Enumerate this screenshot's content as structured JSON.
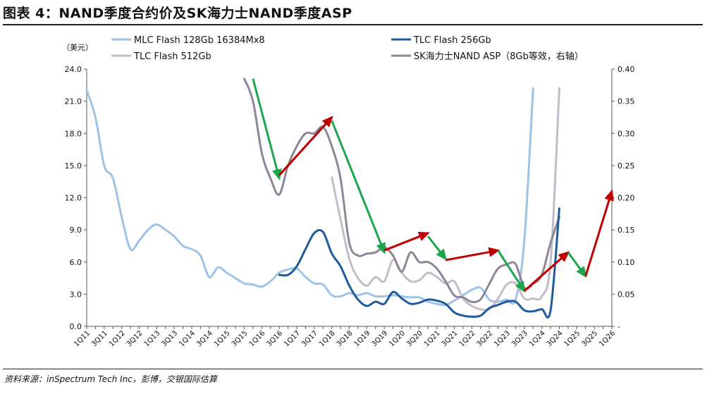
{
  "figure_title": "图表 4：NAND季度合约价及SK海力士NAND季度ASP",
  "source_note": "资料来源：inSpectrum Tech Inc，彭博，交银国际估算",
  "chart_data": {
    "type": "line",
    "title": "图表 4：NAND季度合约价及SK海力士NAND季度ASP",
    "y_unit_label": "（美元）",
    "ylim": [
      0,
      24
    ],
    "y_ticks": [
      "0.0",
      "3.0",
      "6.0",
      "9.0",
      "12.0",
      "15.0",
      "18.0",
      "21.0",
      "24.0"
    ],
    "y2lim": [
      0,
      0.4
    ],
    "y2_ticks": [
      "-",
      "0.05",
      "0.10",
      "0.15",
      "0.20",
      "0.25",
      "0.30",
      "0.35",
      "0.40"
    ],
    "grid": false,
    "legend_position": "top",
    "x": [
      "1Q11",
      "2Q11",
      "3Q11",
      "4Q11",
      "1Q12",
      "2Q12",
      "3Q12",
      "4Q12",
      "1Q13",
      "2Q13",
      "3Q13",
      "4Q13",
      "1Q14",
      "2Q14",
      "3Q14",
      "4Q14",
      "1Q15",
      "2Q15",
      "3Q15",
      "4Q15",
      "1Q16",
      "2Q16",
      "3Q16",
      "4Q16",
      "1Q17",
      "2Q17",
      "3Q17",
      "4Q17",
      "1Q18",
      "2Q18",
      "3Q18",
      "4Q18",
      "1Q19",
      "2Q19",
      "3Q19",
      "4Q19",
      "1Q20",
      "2Q20",
      "3Q20",
      "4Q20",
      "1Q21",
      "2Q21",
      "3Q21",
      "4Q21",
      "1Q22",
      "2Q22",
      "3Q22",
      "4Q22",
      "1Q23",
      "2Q23",
      "3Q23",
      "4Q23",
      "1Q24",
      "2Q24",
      "3Q24",
      "4Q24",
      "1Q25",
      "2Q25",
      "3Q25",
      "4Q25",
      "1Q26"
    ],
    "x_tick_labels": [
      "1Q11",
      "3Q11",
      "1Q12",
      "3Q12",
      "1Q13",
      "3Q13",
      "1Q14",
      "3Q14",
      "1Q15",
      "3Q15",
      "1Q16",
      "3Q16",
      "1Q17",
      "3Q17",
      "1Q18",
      "3Q18",
      "1Q19",
      "3Q19",
      "1Q20",
      "3Q20",
      "1Q21",
      "3Q21",
      "1Q22",
      "3Q22",
      "1Q23",
      "3Q23",
      "1Q24",
      "3Q24",
      "1Q25",
      "3Q25",
      "1Q26"
    ],
    "series": [
      {
        "name": "MLC Flash 128Gb 16384Mx8",
        "axis": "left",
        "color": "#9dc3e6",
        "values": [
          22.0,
          19.5,
          15.0,
          13.8,
          10.2,
          7.2,
          8.0,
          9.0,
          9.5,
          9.0,
          8.4,
          7.5,
          7.2,
          6.6,
          4.6,
          5.5,
          5.0,
          4.5,
          4.0,
          3.9,
          3.7,
          4.2,
          5.0,
          5.3,
          5.4,
          4.6,
          4.0,
          3.9,
          2.9,
          2.8,
          3.1,
          2.9,
          3.1,
          2.8,
          2.8,
          2.9,
          2.8,
          2.7,
          2.7,
          2.3,
          2.1,
          2.0,
          2.4,
          2.9,
          3.4,
          3.6,
          2.5,
          2.3,
          2.5,
          2.5,
          8.0,
          22.2,
          null,
          null,
          null,
          null,
          null,
          null,
          null,
          null,
          null
        ]
      },
      {
        "name": "TLC Flash 256Gb",
        "axis": "left",
        "color": "#1f5a9e",
        "values": [
          null,
          null,
          null,
          null,
          null,
          null,
          null,
          null,
          null,
          null,
          null,
          null,
          null,
          null,
          null,
          null,
          null,
          null,
          null,
          null,
          null,
          null,
          4.8,
          4.8,
          5.6,
          7.2,
          8.7,
          8.8,
          6.8,
          5.6,
          3.8,
          2.5,
          1.9,
          2.3,
          2.1,
          3.2,
          2.6,
          2.1,
          2.2,
          2.5,
          2.4,
          2.1,
          1.3,
          1.0,
          0.9,
          1.0,
          1.7,
          2.0,
          2.3,
          2.3,
          1.5,
          1.4,
          1.6,
          1.5,
          11.0,
          null,
          null,
          null,
          null,
          null,
          null
        ]
      },
      {
        "name": "TLC Flash 512Gb",
        "axis": "left",
        "color": "#c2bcc9",
        "values": [
          null,
          null,
          null,
          null,
          null,
          null,
          null,
          null,
          null,
          null,
          null,
          null,
          null,
          null,
          null,
          null,
          null,
          null,
          null,
          null,
          null,
          null,
          null,
          null,
          null,
          null,
          null,
          null,
          13.9,
          10.0,
          6.3,
          4.5,
          3.8,
          4.6,
          4.2,
          6.2,
          5.0,
          4.2,
          4.3,
          5.0,
          4.6,
          4.0,
          4.2,
          2.6,
          1.9,
          1.6,
          1.6,
          2.6,
          3.9,
          4.0,
          2.6,
          2.6,
          2.8,
          6.0,
          22.2,
          null,
          null,
          null,
          null,
          null,
          null
        ]
      },
      {
        "name": "SK海力士NAND ASP（8Gb等效，右轴）",
        "axis": "right",
        "color": "#8e8597",
        "values": [
          null,
          null,
          null,
          null,
          null,
          null,
          null,
          null,
          null,
          null,
          null,
          null,
          null,
          null,
          null,
          null,
          null,
          null,
          0.385,
          0.35,
          0.27,
          0.23,
          0.205,
          0.25,
          0.28,
          0.3,
          0.3,
          0.31,
          0.28,
          0.23,
          0.13,
          0.11,
          0.113,
          0.115,
          0.123,
          0.11,
          0.085,
          0.115,
          0.1,
          0.1,
          0.09,
          0.07,
          0.048,
          0.045,
          0.038,
          0.042,
          0.066,
          0.09,
          0.096,
          0.097,
          0.06,
          0.066,
          0.08,
          0.13,
          0.17,
          null,
          null,
          null,
          null,
          null,
          null
        ]
      }
    ],
    "annotations": [
      {
        "type": "arrow",
        "color": "#1aa64a",
        "direction": "down",
        "from": [
          "4Q15",
          0.385
        ],
        "to": [
          "3Q16",
          0.23
        ]
      },
      {
        "type": "arrow",
        "color": "#c00000",
        "direction": "up",
        "from": [
          "3Q16",
          0.235
        ],
        "to": [
          "1Q18",
          0.325
        ]
      },
      {
        "type": "arrow",
        "color": "#1aa64a",
        "direction": "down",
        "from": [
          "1Q18",
          0.32
        ],
        "to": [
          "3Q19",
          0.115
        ]
      },
      {
        "type": "arrow",
        "color": "#c00000",
        "direction": "up",
        "from": [
          "3Q19",
          0.118
        ],
        "to": [
          "4Q20",
          0.145
        ]
      },
      {
        "type": "arrow",
        "color": "#1aa64a",
        "direction": "down",
        "from": [
          "4Q20",
          0.14
        ],
        "to": [
          "2Q21",
          0.105
        ]
      },
      {
        "type": "arrow",
        "color": "#c00000",
        "direction": "up",
        "from": [
          "2Q21",
          0.103
        ],
        "to": [
          "4Q22",
          0.118
        ]
      },
      {
        "type": "arrow",
        "color": "#1aa64a",
        "direction": "down",
        "from": [
          "4Q22",
          0.118
        ],
        "to": [
          "3Q23",
          0.055
        ]
      },
      {
        "type": "arrow",
        "color": "#c00000",
        "direction": "up",
        "from": [
          "3Q23",
          0.055
        ],
        "to": [
          "4Q24",
          0.115
        ]
      },
      {
        "type": "arrow",
        "color": "#1aa64a",
        "direction": "down",
        "from": [
          "4Q24",
          0.115
        ],
        "to": [
          "2Q25",
          0.078
        ]
      },
      {
        "type": "arrow",
        "color": "#c00000",
        "direction": "up",
        "from": [
          "2Q25",
          0.078
        ],
        "to": [
          "1Q26",
          0.21
        ]
      }
    ]
  }
}
